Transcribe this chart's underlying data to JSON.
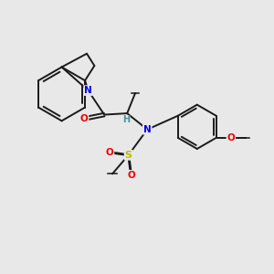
{
  "bg_color": "#e8e8e8",
  "bond_color": "#1a1a1a",
  "N_color": "#0000ee",
  "O_color": "#ee0000",
  "S_color": "#bbbb00",
  "H_color": "#4a8fa0",
  "line_width": 1.4,
  "figsize": [
    3.0,
    3.0
  ],
  "dpi": 100,
  "xlim": [
    0,
    10
  ],
  "ylim": [
    0,
    10
  ]
}
